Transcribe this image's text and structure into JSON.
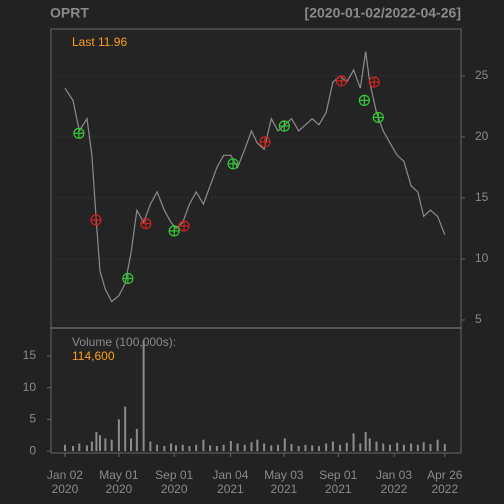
{
  "chart_data": {
    "type": "line",
    "title": "OPRT",
    "subtitle": "[2020-01-02/2022-04-26]",
    "last_label": "Last 11.96",
    "x": [
      "2020-01-02",
      "2020-01-20",
      "2020-02-03",
      "2020-02-20",
      "2020-03-02",
      "2020-03-12",
      "2020-03-20",
      "2020-04-01",
      "2020-04-15",
      "2020-05-01",
      "2020-05-15",
      "2020-05-28",
      "2020-06-10",
      "2020-06-25",
      "2020-07-10",
      "2020-07-25",
      "2020-08-10",
      "2020-08-25",
      "2020-09-05",
      "2020-09-20",
      "2020-10-05",
      "2020-10-20",
      "2020-11-05",
      "2020-11-20",
      "2020-12-05",
      "2020-12-20",
      "2021-01-05",
      "2021-01-20",
      "2021-02-05",
      "2021-02-20",
      "2021-03-05",
      "2021-03-20",
      "2021-04-05",
      "2021-04-20",
      "2021-05-05",
      "2021-05-20",
      "2021-06-05",
      "2021-06-20",
      "2021-07-05",
      "2021-07-20",
      "2021-08-05",
      "2021-08-20",
      "2021-09-05",
      "2021-09-20",
      "2021-10-05",
      "2021-10-20",
      "2021-11-01",
      "2021-11-10",
      "2021-11-25",
      "2021-12-10",
      "2021-12-25",
      "2022-01-10",
      "2022-01-25",
      "2022-02-10",
      "2022-02-25",
      "2022-03-10",
      "2022-03-25",
      "2022-04-10",
      "2022-04-26"
    ],
    "series": [
      {
        "color": "#8c8c8c",
        "values": [
          24.0,
          23.0,
          20.5,
          21.5,
          18.5,
          13.0,
          9.0,
          7.5,
          6.5,
          7.0,
          8.0,
          10.5,
          14.0,
          13.0,
          14.5,
          15.5,
          14.0,
          13.0,
          12.5,
          13.0,
          14.5,
          15.5,
          14.5,
          16.0,
          17.5,
          18.5,
          18.5,
          17.5,
          19.0,
          20.5,
          19.5,
          19.0,
          21.5,
          20.5,
          21.0,
          21.5,
          20.5,
          21.0,
          21.5,
          21.0,
          22.0,
          24.5,
          25.0,
          24.5,
          25.5,
          24.0,
          27.0,
          24.5,
          22.0,
          20.5,
          19.5,
          18.5,
          18.0,
          16.0,
          15.5,
          13.5,
          14.0,
          13.5,
          12.0
        ]
      }
    ],
    "buy_signals": {
      "color": "#33cc33",
      "x": [
        "2020-02-02",
        "2020-05-21",
        "2020-09-01",
        "2021-01-10",
        "2021-05-04",
        "2021-10-29",
        "2021-11-29"
      ],
      "values": [
        20.3,
        8.4,
        12.3,
        17.8,
        20.9,
        23.0,
        21.6
      ]
    },
    "sell_signals": {
      "color": "#cc2222",
      "x": [
        "2020-03-11",
        "2020-06-30",
        "2020-09-23",
        "2021-03-22",
        "2021-09-08",
        "2021-11-20"
      ],
      "values": [
        13.2,
        12.9,
        12.7,
        19.6,
        24.6,
        24.5
      ]
    },
    "xlim": [
      "2019-12-02",
      "2022-06-01"
    ],
    "xticks": [
      {
        "value": "2020-01-02",
        "label": [
          "Jan 02",
          "2020"
        ]
      },
      {
        "value": "2020-05-01",
        "label": [
          "May 01",
          "2020"
        ]
      },
      {
        "value": "2020-09-01",
        "label": [
          "Sep 01",
          "2020"
        ]
      },
      {
        "value": "2021-01-04",
        "label": [
          "Jan 04",
          "2021"
        ]
      },
      {
        "value": "2021-05-03",
        "label": [
          "May 03",
          "2021"
        ]
      },
      {
        "value": "2021-09-01",
        "label": [
          "Sep 01",
          "2021"
        ]
      },
      {
        "value": "2022-01-03",
        "label": [
          "Jan 03",
          "2022"
        ]
      },
      {
        "value": "2022-04-26",
        "label": [
          "Apr 26",
          "2022"
        ]
      }
    ],
    "ylim": [
      4.34,
      28.85
    ],
    "yticks": [
      5,
      10,
      15,
      20,
      25
    ],
    "grid": true,
    "volume": {
      "label": "Volume (100,000s):",
      "last": "114,600",
      "color": "#8c8c8c",
      "values": [
        1.0,
        0.8,
        1.2,
        0.9,
        1.5,
        3.0,
        2.5,
        2.0,
        1.8,
        5.0,
        7.0,
        2.0,
        3.5,
        17.5,
        1.5,
        1.0,
        0.8,
        1.2,
        0.9,
        1.0,
        0.8,
        1.0,
        1.8,
        0.9,
        0.8,
        1.0,
        1.6,
        1.2,
        1.0,
        1.4,
        1.8,
        1.2,
        0.9,
        1.0,
        2.0,
        1.1,
        0.8,
        1.0,
        0.9,
        0.8,
        1.2,
        1.5,
        1.0,
        1.3,
        2.8,
        1.2,
        3.0,
        2.0,
        1.5,
        1.2,
        1.0,
        1.3,
        1.0,
        1.2,
        1.0,
        1.4,
        1.1,
        1.8,
        1.1
      ],
      "ylim": [
        -0.3,
        19.4
      ],
      "yticks": [
        0,
        5,
        10,
        15
      ]
    }
  }
}
